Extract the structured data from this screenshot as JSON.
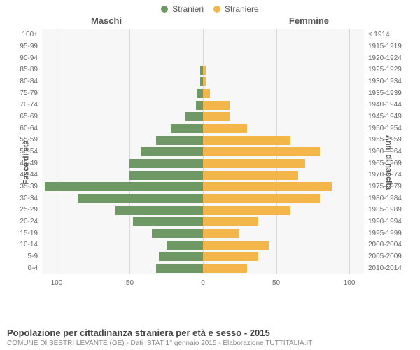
{
  "legend": {
    "male": {
      "label": "Stranieri",
      "color": "#6e9964"
    },
    "female": {
      "label": "Straniere",
      "color": "#f2b64a"
    }
  },
  "header": {
    "male": "Maschi",
    "female": "Femmine"
  },
  "yaxis_left_title": "Fasce di età",
  "yaxis_right_title": "Anni di nascita",
  "chart": {
    "type": "population-pyramid",
    "max_value": 110,
    "background_color": "#f7f7f7",
    "grid_color": "#d9d9d9",
    "male_color": "#6e9964",
    "female_color": "#f2b64a",
    "bar_height_ratio": 0.78,
    "x_ticks_left": [
      100,
      50,
      0
    ],
    "x_ticks_right": [
      0,
      50,
      100
    ],
    "rows": [
      {
        "age": "100+",
        "birth": "≤ 1914",
        "m": 0,
        "f": 0
      },
      {
        "age": "95-99",
        "birth": "1915-1919",
        "m": 0,
        "f": 0
      },
      {
        "age": "90-94",
        "birth": "1920-1924",
        "m": 0,
        "f": 0
      },
      {
        "age": "85-89",
        "birth": "1925-1929",
        "m": 2,
        "f": 2
      },
      {
        "age": "80-84",
        "birth": "1930-1934",
        "m": 2,
        "f": 2
      },
      {
        "age": "75-79",
        "birth": "1935-1939",
        "m": 4,
        "f": 5
      },
      {
        "age": "70-74",
        "birth": "1940-1944",
        "m": 5,
        "f": 18
      },
      {
        "age": "65-69",
        "birth": "1945-1949",
        "m": 12,
        "f": 18
      },
      {
        "age": "60-64",
        "birth": "1950-1954",
        "m": 22,
        "f": 30
      },
      {
        "age": "55-59",
        "birth": "1955-1959",
        "m": 32,
        "f": 60
      },
      {
        "age": "50-54",
        "birth": "1960-1964",
        "m": 42,
        "f": 80
      },
      {
        "age": "45-49",
        "birth": "1965-1969",
        "m": 50,
        "f": 70
      },
      {
        "age": "40-44",
        "birth": "1970-1974",
        "m": 50,
        "f": 65
      },
      {
        "age": "35-39",
        "birth": "1975-1979",
        "m": 108,
        "f": 88
      },
      {
        "age": "30-34",
        "birth": "1980-1984",
        "m": 85,
        "f": 80
      },
      {
        "age": "25-29",
        "birth": "1985-1989",
        "m": 60,
        "f": 60
      },
      {
        "age": "20-24",
        "birth": "1990-1994",
        "m": 48,
        "f": 38
      },
      {
        "age": "15-19",
        "birth": "1995-1999",
        "m": 35,
        "f": 25
      },
      {
        "age": "10-14",
        "birth": "2000-2004",
        "m": 25,
        "f": 45
      },
      {
        "age": "5-9",
        "birth": "2005-2009",
        "m": 30,
        "f": 38
      },
      {
        "age": "0-4",
        "birth": "2010-2014",
        "m": 32,
        "f": 30
      }
    ]
  },
  "footer": {
    "title": "Popolazione per cittadinanza straniera per età e sesso - 2015",
    "subtitle": "COMUNE DI SESTRI LEVANTE (GE) - Dati ISTAT 1° gennaio 2015 - Elaborazione TUTTITALIA.IT"
  }
}
